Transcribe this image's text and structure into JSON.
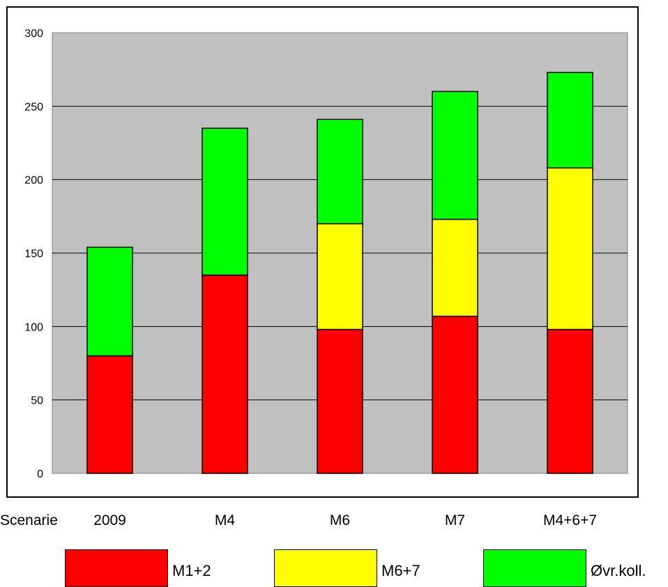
{
  "chart_data": {
    "type": "bar",
    "stacked": true,
    "xlabel": "Scenarie",
    "categories": [
      "2009",
      "M4",
      "M6",
      "M7",
      "M4+6+7"
    ],
    "series": [
      {
        "name": "M1+2",
        "color": "#ff0000",
        "values": [
          80,
          135,
          98,
          107,
          98
        ]
      },
      {
        "name": "M6+7",
        "color": "#ffff00",
        "values": [
          0,
          0,
          72,
          66,
          110
        ]
      },
      {
        "name": "Øvr.koll.",
        "color": "#00ff00",
        "values": [
          74,
          100,
          71,
          87,
          65
        ]
      }
    ],
    "yticks": [
      "0",
      "50",
      "100",
      "150",
      "200",
      "250",
      "300"
    ],
    "ylim": [
      0,
      300
    ],
    "grid": true,
    "plot_background": "#c0c0c0",
    "legend_position": "bottom"
  }
}
